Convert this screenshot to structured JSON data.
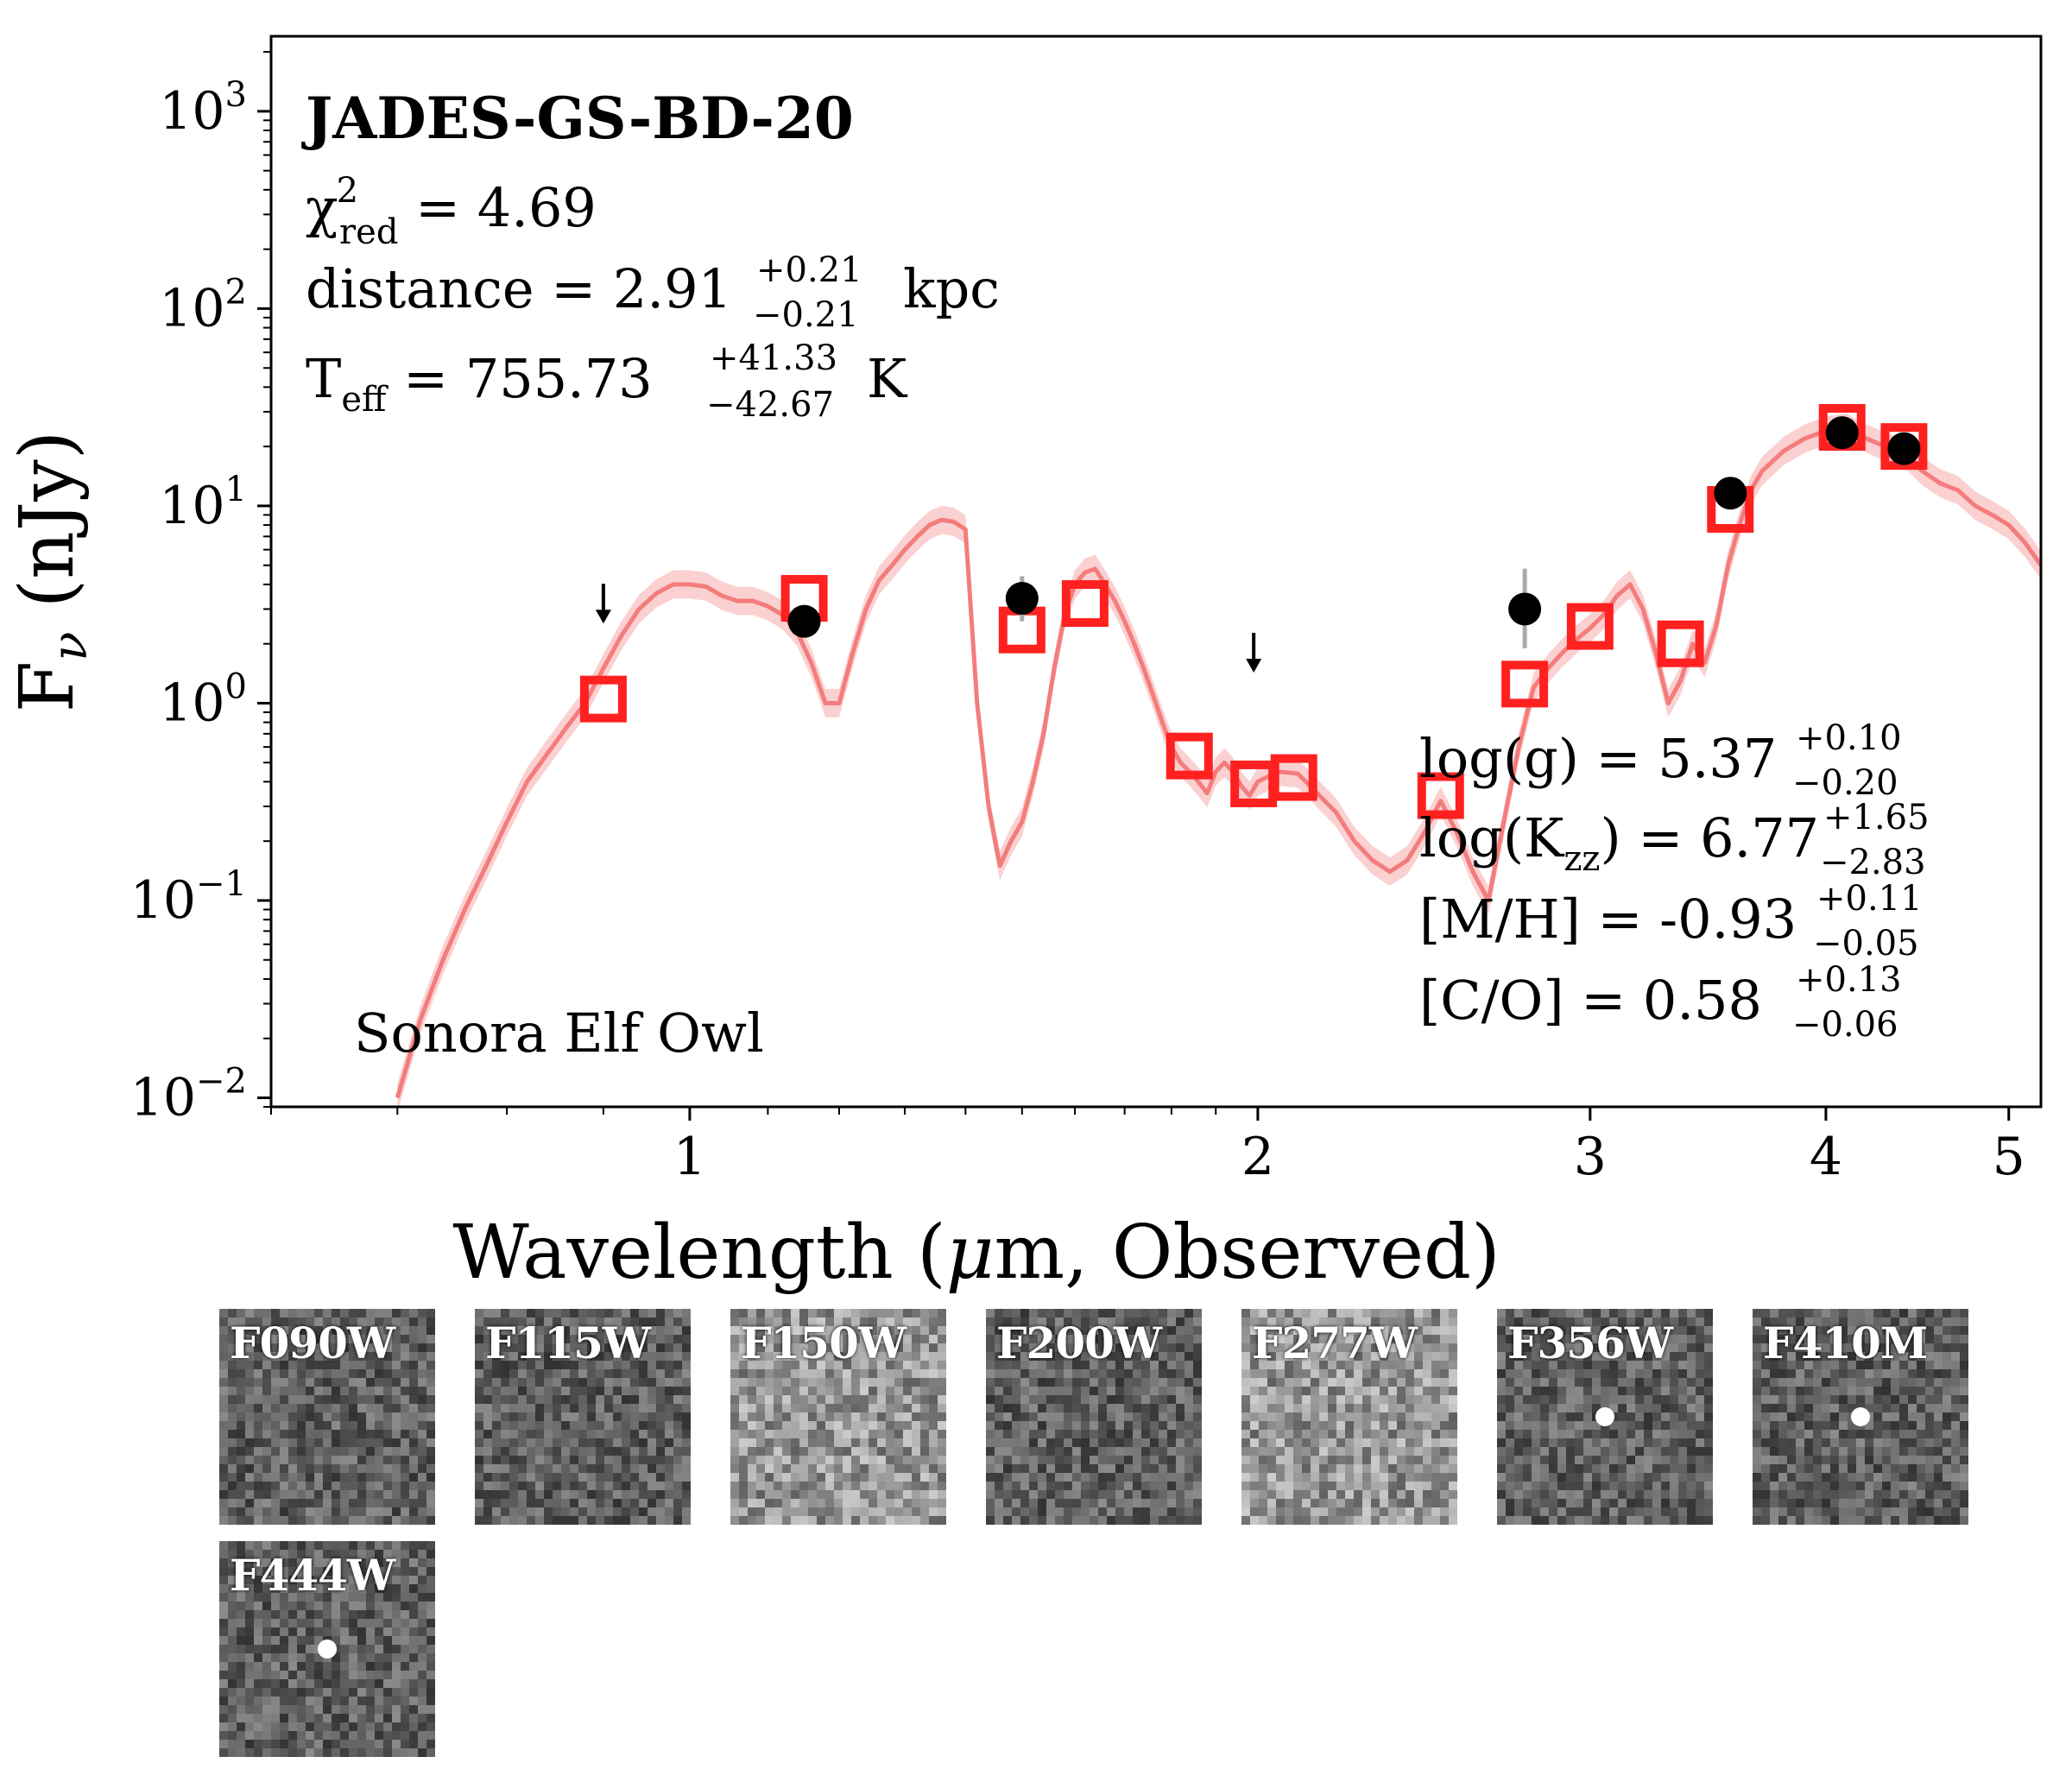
{
  "chart_data": {
    "type": "scatter",
    "xscale": "log",
    "yscale": "log",
    "xlim": [
      0.6,
      5.2
    ],
    "ylim": [
      0.009,
      2400
    ],
    "xlabel_parts": {
      "pre": "Wavelength (",
      "greek": "μ",
      "post": "m, Observed)"
    },
    "ylabel_parts": {
      "f": "F",
      "sub": "ν",
      "post": " (nJy)"
    },
    "xticks": [
      {
        "v": 1,
        "label": "1"
      },
      {
        "v": 2,
        "label": "2"
      },
      {
        "v": 3,
        "label": "3"
      },
      {
        "v": 4,
        "label": "4"
      },
      {
        "v": 5,
        "label": "5"
      }
    ],
    "yticks": [
      {
        "v": 0.01,
        "base": "10",
        "exp": "−2"
      },
      {
        "v": 0.1,
        "base": "10",
        "exp": "−1"
      },
      {
        "v": 1,
        "base": "10",
        "exp": "0"
      },
      {
        "v": 10,
        "base": "10",
        "exp": "1"
      },
      {
        "v": 100,
        "base": "10",
        "exp": "2"
      },
      {
        "v": 1000,
        "base": "10",
        "exp": "3"
      }
    ],
    "model_spectrum": {
      "name": "Sonora Elf Owl",
      "color": "#f47c7c",
      "band_color": "#fbd0d0",
      "x": [
        0.7,
        0.72,
        0.74,
        0.76,
        0.78,
        0.8,
        0.82,
        0.84,
        0.86,
        0.88,
        0.9,
        0.92,
        0.94,
        0.96,
        0.98,
        1.0,
        1.02,
        1.04,
        1.06,
        1.08,
        1.1,
        1.12,
        1.14,
        1.16,
        1.18,
        1.2,
        1.22,
        1.24,
        1.26,
        1.28,
        1.3,
        1.32,
        1.34,
        1.36,
        1.38,
        1.4,
        1.42,
        1.44,
        1.46,
        1.48,
        1.5,
        1.52,
        1.54,
        1.56,
        1.58,
        1.6,
        1.62,
        1.64,
        1.66,
        1.68,
        1.7,
        1.72,
        1.74,
        1.76,
        1.78,
        1.8,
        1.82,
        1.84,
        1.86,
        1.88,
        1.9,
        1.92,
        1.94,
        1.96,
        1.98,
        2.0,
        2.05,
        2.1,
        2.15,
        2.2,
        2.25,
        2.3,
        2.35,
        2.4,
        2.45,
        2.5,
        2.55,
        2.6,
        2.65,
        2.7,
        2.75,
        2.8,
        2.85,
        2.9,
        2.95,
        3.0,
        3.05,
        3.1,
        3.15,
        3.2,
        3.25,
        3.3,
        3.35,
        3.4,
        3.45,
        3.5,
        3.55,
        3.6,
        3.65,
        3.7,
        3.8,
        3.9,
        4.0,
        4.1,
        4.2,
        4.3,
        4.4,
        4.5,
        4.6,
        4.7,
        4.8,
        4.9,
        5.0,
        5.1,
        5.2
      ],
      "y": [
        0.01,
        0.025,
        0.05,
        0.09,
        0.15,
        0.25,
        0.4,
        0.55,
        0.75,
        1.0,
        1.5,
        2.2,
        3.0,
        3.6,
        4.0,
        4.0,
        3.9,
        3.5,
        3.3,
        3.3,
        3.1,
        2.8,
        2.3,
        1.6,
        1.0,
        1.0,
        1.8,
        3.0,
        4.2,
        5.0,
        6.0,
        7.0,
        8.0,
        8.5,
        8.3,
        7.6,
        1.0,
        0.3,
        0.15,
        0.2,
        0.25,
        0.4,
        0.7,
        1.5,
        2.8,
        4.0,
        4.6,
        4.8,
        4.0,
        3.3,
        2.6,
        2.0,
        1.5,
        1.1,
        0.8,
        0.6,
        0.5,
        0.45,
        0.4,
        0.35,
        0.45,
        0.5,
        0.45,
        0.38,
        0.34,
        0.4,
        0.45,
        0.44,
        0.35,
        0.28,
        0.2,
        0.16,
        0.14,
        0.16,
        0.22,
        0.32,
        0.22,
        0.14,
        0.1,
        0.25,
        0.6,
        1.2,
        1.5,
        1.8,
        2.1,
        2.4,
        2.8,
        3.5,
        4.0,
        3.0,
        1.8,
        1.0,
        1.3,
        2.0,
        1.6,
        2.5,
        5.0,
        8.0,
        12.0,
        15.0,
        19.0,
        22.0,
        24.0,
        25.0,
        22.0,
        20.0,
        18.5,
        15.0,
        13.0,
        12.0,
        10.0,
        9.0,
        8.0,
        6.5,
        5.0
      ]
    },
    "model_photometry": {
      "marker": "square",
      "color": "#ff2020",
      "points": [
        {
          "x": 0.9,
          "y": 1.05
        },
        {
          "x": 1.15,
          "y": 3.4
        },
        {
          "x": 1.5,
          "y": 2.35
        },
        {
          "x": 1.62,
          "y": 3.2
        },
        {
          "x": 1.84,
          "y": 0.54
        },
        {
          "x": 1.99,
          "y": 0.39
        },
        {
          "x": 2.09,
          "y": 0.42
        },
        {
          "x": 2.5,
          "y": 0.34
        },
        {
          "x": 2.77,
          "y": 1.25
        },
        {
          "x": 3.0,
          "y": 2.45
        },
        {
          "x": 3.35,
          "y": 2.0
        },
        {
          "x": 3.56,
          "y": 9.6
        },
        {
          "x": 4.08,
          "y": 25.0
        },
        {
          "x": 4.4,
          "y": 20.0
        }
      ]
    },
    "observed_photometry": {
      "marker": "circle",
      "color": "#000000",
      "errorbar_color": "#aaaaaa",
      "points": [
        {
          "x": 1.15,
          "y": 2.6,
          "err_lo": 2.2,
          "err_hi": 3.0
        },
        {
          "x": 1.5,
          "y": 3.4,
          "err_lo": 2.6,
          "err_hi": 4.4
        },
        {
          "x": 2.77,
          "y": 3.0,
          "err_lo": 1.9,
          "err_hi": 4.8
        },
        {
          "x": 3.56,
          "y": 11.6,
          "err_lo": 10.8,
          "err_hi": 12.6
        },
        {
          "x": 4.08,
          "y": 23.5,
          "err_lo": 22.5,
          "err_hi": 24.5
        },
        {
          "x": 4.4,
          "y": 19.5,
          "err_lo": 18.7,
          "err_hi": 20.3
        }
      ]
    },
    "upper_limits": [
      {
        "x": 0.9,
        "y": 3.1
      },
      {
        "x": 1.99,
        "y": 1.75
      }
    ]
  },
  "annotations": {
    "object_name": "JADES-GS-BD-20",
    "chi2": {
      "sym": "χ",
      "sup": "2",
      "sub": "red",
      "value": " = 4.69"
    },
    "distance": {
      "prefix": "distance = 2.91",
      "sup": "+0.21",
      "sub": "−0.21",
      "unit": "kpc"
    },
    "teff": {
      "label": "T",
      "sub_label": "eff",
      "prefix": " = 755.73",
      "sup": "+41.33",
      "sub": "−42.67",
      "unit": "K"
    },
    "logg": {
      "prefix": "log(g) = 5.37",
      "sup": "+0.10",
      "sub": "−0.20"
    },
    "logkzz": {
      "prefix_a": "log(K",
      "label_sub": "zz",
      "prefix_b": ") = 6.77",
      "sup": "+1.65",
      "sub": "−2.83"
    },
    "mh": {
      "prefix": "[M/H] = -0.93",
      "sup": "+0.11",
      "sub": "−0.05"
    },
    "co": {
      "prefix": "[C/O] = 0.58",
      "sup": "+0.13",
      "sub": "−0.06"
    },
    "model_name": "Sonora Elf Owl"
  },
  "cutouts": [
    {
      "label": "F090W",
      "source": false,
      "tone": "dark"
    },
    {
      "label": "F115W",
      "source": false,
      "tone": "dark"
    },
    {
      "label": "F150W",
      "source": false,
      "tone": "light"
    },
    {
      "label": "F200W",
      "source": false,
      "tone": "dark"
    },
    {
      "label": "F277W",
      "source": false,
      "tone": "light"
    },
    {
      "label": "F356W",
      "source": true,
      "tone": "dark"
    },
    {
      "label": "F410M",
      "source": true,
      "tone": "dark"
    },
    {
      "label": "F444W",
      "source": true,
      "tone": "dark"
    }
  ]
}
